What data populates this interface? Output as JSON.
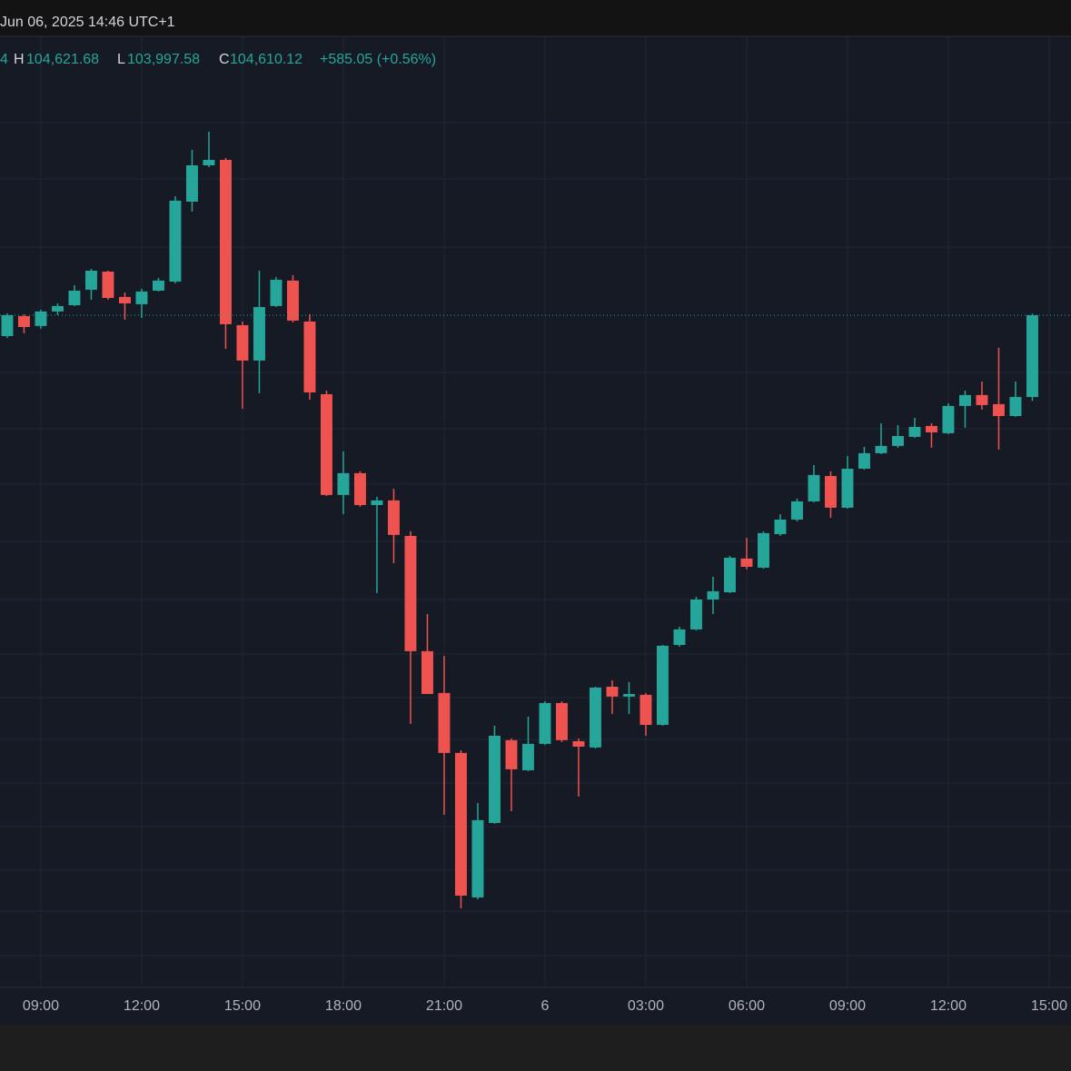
{
  "chart_data": {
    "type": "candlestick",
    "header": {
      "datetime": "Jun 06, 2025 14:46 UTC+1",
      "open_fragment": "4",
      "high_label": "H",
      "high_value": "104,621.68",
      "low_label": "L",
      "low_value": "103,997.58",
      "close_label": "C",
      "close_value": "104,610.12",
      "change": "+585.05 (+0.56%)"
    },
    "up_color": "#26a69a",
    "down_color": "#ef5350",
    "last_price_line": true,
    "grid": true,
    "xlim": [
      -0.43,
      63.3
    ],
    "ylim": [
      99800,
      106606
    ],
    "xticks": [
      {
        "value": 2,
        "label": "09:00"
      },
      {
        "value": 8,
        "label": "12:00"
      },
      {
        "value": 14,
        "label": "15:00"
      },
      {
        "value": 20,
        "label": "18:00"
      },
      {
        "value": 26,
        "label": "21:00"
      },
      {
        "value": 32,
        "label": "6"
      },
      {
        "value": 38,
        "label": "03:00"
      },
      {
        "value": 44,
        "label": "06:00"
      },
      {
        "value": 50,
        "label": "09:00"
      },
      {
        "value": 56,
        "label": "12:00"
      },
      {
        "value": 62,
        "label": "15:00"
      }
    ],
    "open": [
      104461,
      104604,
      104533,
      104637,
      104682,
      104793,
      104922,
      104741,
      104689,
      104786,
      104851,
      105423,
      105683,
      105722,
      104539,
      104286,
      104676,
      104858,
      104565,
      104045,
      103324,
      103480,
      103252,
      103285,
      103031,
      102206,
      101907,
      101478,
      100444,
      100977,
      101569,
      101354,
      101543,
      101835,
      101562,
      101517,
      101952,
      101881,
      101894,
      101679,
      102251,
      102362,
      102576,
      102628,
      102869,
      102804,
      103044,
      103148,
      103278,
      103460,
      103233,
      103512,
      103623,
      103675,
      103740,
      103818,
      103766,
      103961,
      104039,
      103974,
      103889,
      104025.07
    ],
    "high": [
      104624,
      104617,
      104650,
      104695,
      104825,
      104942,
      104929,
      104773,
      104799,
      104877,
      105462,
      105794,
      105924,
      105735,
      104565,
      104929,
      104884,
      104897,
      104617,
      104071,
      103636,
      103493,
      103311,
      103369,
      103064,
      102472,
      102173,
      101497,
      101120,
      101673,
      101582,
      101738,
      101848,
      101848,
      101582,
      101952,
      101998,
      101985,
      101907,
      102251,
      102381,
      102596,
      102739,
      102888,
      103018,
      103064,
      103187,
      103298,
      103538,
      103493,
      103603,
      103668,
      103837,
      103824,
      103876,
      103837,
      103980,
      104071,
      104136,
      104377,
      104136,
      104621.68
    ],
    "low": [
      104448,
      104481,
      104513,
      104611,
      104676,
      104721,
      104721,
      104578,
      104591,
      104780,
      104838,
      105352,
      105670,
      104370,
      103941,
      104052,
      104669,
      104559,
      104006,
      103317,
      103187,
      103239,
      102622,
      102836,
      101686,
      101900,
      101036,
      100366,
      100431,
      100971,
      101062,
      101348,
      101536,
      101556,
      101166,
      101510,
      101757,
      101757,
      101601,
      101673,
      102238,
      102355,
      102472,
      102622,
      102791,
      102797,
      103031,
      103135,
      103272,
      103161,
      103226,
      103506,
      103616,
      103662,
      103733,
      103662,
      103759,
      103805,
      103935,
      103649,
      103883,
      103997.58
    ],
    "close": [
      104611,
      104526,
      104637,
      104676,
      104786,
      104929,
      104734,
      104695,
      104780,
      104858,
      105430,
      105683,
      105722,
      104546,
      104286,
      104669,
      104864,
      104572,
      104058,
      103324,
      103480,
      103252,
      103285,
      103038,
      102206,
      101900,
      101478,
      100457,
      100997,
      101601,
      101361,
      101543,
      101835,
      101569,
      101523,
      101946,
      101881,
      101900,
      101679,
      102245,
      102362,
      102576,
      102635,
      102875,
      102810,
      103051,
      103148,
      103278,
      103467,
      103233,
      103512,
      103623,
      103675,
      103746,
      103811,
      103772,
      103961,
      104039,
      103967,
      103889,
      104025,
      104610.12
    ]
  }
}
